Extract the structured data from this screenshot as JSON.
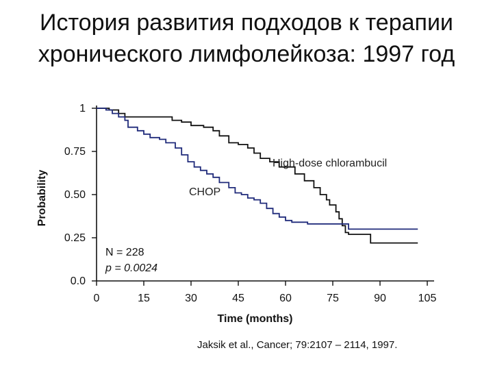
{
  "slide": {
    "title_line1": "История развития подходов к терапии",
    "title_line2": "хронического лимфолейкоза: 1997 год",
    "citation": "Jaksik et al., Cancer; 79:2107 – 2114, 1997."
  },
  "chart_data": {
    "type": "line",
    "xlabel": "Time (months)",
    "ylabel": "Probability",
    "xlim": [
      0,
      105
    ],
    "ylim": [
      0,
      1
    ],
    "x_ticks": [
      "0",
      "15",
      "30",
      "45",
      "60",
      "75",
      "90",
      "105"
    ],
    "y_ticks": [
      "0.0",
      "0.25",
      "0.50",
      "0.75",
      "1"
    ],
    "grid": false,
    "annotations": {
      "n": "N = 228",
      "p": "p = 0.0024"
    },
    "series": [
      {
        "name": "High-dose chlorambucil",
        "color": "#111111",
        "step": true,
        "points": [
          [
            0,
            1.0
          ],
          [
            4,
            0.99
          ],
          [
            7,
            0.97
          ],
          [
            9,
            0.95
          ],
          [
            22,
            0.95
          ],
          [
            24,
            0.93
          ],
          [
            27,
            0.92
          ],
          [
            30,
            0.9
          ],
          [
            34,
            0.89
          ],
          [
            37,
            0.87
          ],
          [
            39,
            0.84
          ],
          [
            42,
            0.8
          ],
          [
            45,
            0.79
          ],
          [
            48,
            0.77
          ],
          [
            50,
            0.74
          ],
          [
            52,
            0.71
          ],
          [
            55,
            0.69
          ],
          [
            58,
            0.66
          ],
          [
            63,
            0.62
          ],
          [
            66,
            0.58
          ],
          [
            69,
            0.54
          ],
          [
            71,
            0.5
          ],
          [
            73,
            0.47
          ],
          [
            74,
            0.44
          ],
          [
            76,
            0.4
          ],
          [
            77,
            0.36
          ],
          [
            78,
            0.32
          ],
          [
            79,
            0.28
          ],
          [
            80,
            0.27
          ],
          [
            87,
            0.22
          ],
          [
            102,
            0.22
          ]
        ]
      },
      {
        "name": "CHOP",
        "color": "#1f2a7a",
        "step": true,
        "points": [
          [
            0,
            1.0
          ],
          [
            3,
            0.99
          ],
          [
            5,
            0.97
          ],
          [
            7,
            0.95
          ],
          [
            9,
            0.93
          ],
          [
            10,
            0.89
          ],
          [
            13,
            0.87
          ],
          [
            15,
            0.85
          ],
          [
            17,
            0.83
          ],
          [
            20,
            0.82
          ],
          [
            22,
            0.8
          ],
          [
            25,
            0.77
          ],
          [
            27,
            0.73
          ],
          [
            29,
            0.69
          ],
          [
            31,
            0.66
          ],
          [
            33,
            0.64
          ],
          [
            35,
            0.62
          ],
          [
            37,
            0.6
          ],
          [
            39,
            0.57
          ],
          [
            42,
            0.54
          ],
          [
            44,
            0.51
          ],
          [
            46,
            0.5
          ],
          [
            48,
            0.48
          ],
          [
            50,
            0.47
          ],
          [
            52,
            0.45
          ],
          [
            54,
            0.42
          ],
          [
            56,
            0.39
          ],
          [
            58,
            0.37
          ],
          [
            60,
            0.35
          ],
          [
            62,
            0.34
          ],
          [
            64,
            0.34
          ],
          [
            67,
            0.33
          ],
          [
            74,
            0.33
          ],
          [
            80,
            0.3
          ],
          [
            102,
            0.3
          ]
        ]
      }
    ]
  }
}
